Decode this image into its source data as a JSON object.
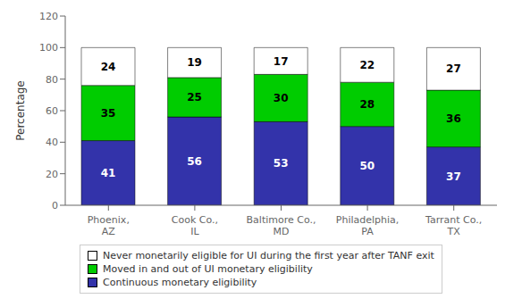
{
  "chart_data": {
    "type": "bar",
    "stacked": true,
    "data_labels": true,
    "grid": false,
    "legend": "bottom",
    "ylabel": "Percentage",
    "categories": [
      "Phoenix,\nAZ",
      "Cook Co.,\nIL",
      "Baltimore Co.,\nMD",
      "Philadelphia,\nPA",
      "Tarrant Co.,\nTX"
    ],
    "series": [
      {
        "name": "Continuous monetary eligibility",
        "color": "#3333aa",
        "values": [
          41,
          56,
          53,
          50,
          37
        ]
      },
      {
        "name": "Moved in and out of UI monetary eligibility",
        "color": "#00cc00",
        "values": [
          35,
          25,
          30,
          28,
          36
        ]
      },
      {
        "name": "Never monetarily eligible for UI during the first year after TANF exit",
        "color": "#ffffff",
        "values": [
          24,
          19,
          17,
          22,
          27
        ]
      }
    ],
    "ylim": [
      0,
      120
    ],
    "yticks": [
      0,
      20,
      40,
      60,
      80,
      100,
      120
    ]
  }
}
